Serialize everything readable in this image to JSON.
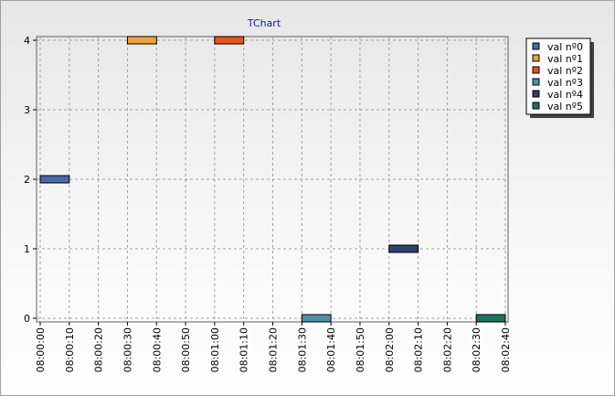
{
  "chart_data": {
    "type": "gantt",
    "title": "TChart",
    "series": [
      {
        "name": "val nº0",
        "color": "#4a68ac",
        "start": "08:00:00",
        "end": "08:00:10",
        "value": 2
      },
      {
        "name": "val nº1",
        "color": "#f4a040",
        "start": "08:00:30",
        "end": "08:00:40",
        "value": 4
      },
      {
        "name": "val nº2",
        "color": "#e8541c",
        "start": "08:01:00",
        "end": "08:01:10",
        "value": 4
      },
      {
        "name": "val nº3",
        "color": "#4c90a8",
        "start": "08:01:30",
        "end": "08:01:40",
        "value": 0
      },
      {
        "name": "val nº4",
        "color": "#2c4270",
        "start": "08:02:00",
        "end": "08:02:10",
        "value": 1
      },
      {
        "name": "val nº5",
        "color": "#1e7060",
        "start": "08:02:30",
        "end": "08:02:40",
        "value": 0
      }
    ],
    "xlim": [
      "08:00:00",
      "08:02:40"
    ],
    "xticks": [
      "08:00:00",
      "08:00:10",
      "08:00:20",
      "08:00:30",
      "08:00:40",
      "08:00:50",
      "08:01:00",
      "08:01:10",
      "08:01:20",
      "08:01:30",
      "08:01:40",
      "08:01:50",
      "08:02:00",
      "08:02:10",
      "08:02:20",
      "08:02:30",
      "08:02:40"
    ],
    "ylim": [
      0,
      4
    ],
    "yticks": [
      0,
      1,
      2,
      3,
      4
    ],
    "grid": true,
    "legend": "right"
  }
}
